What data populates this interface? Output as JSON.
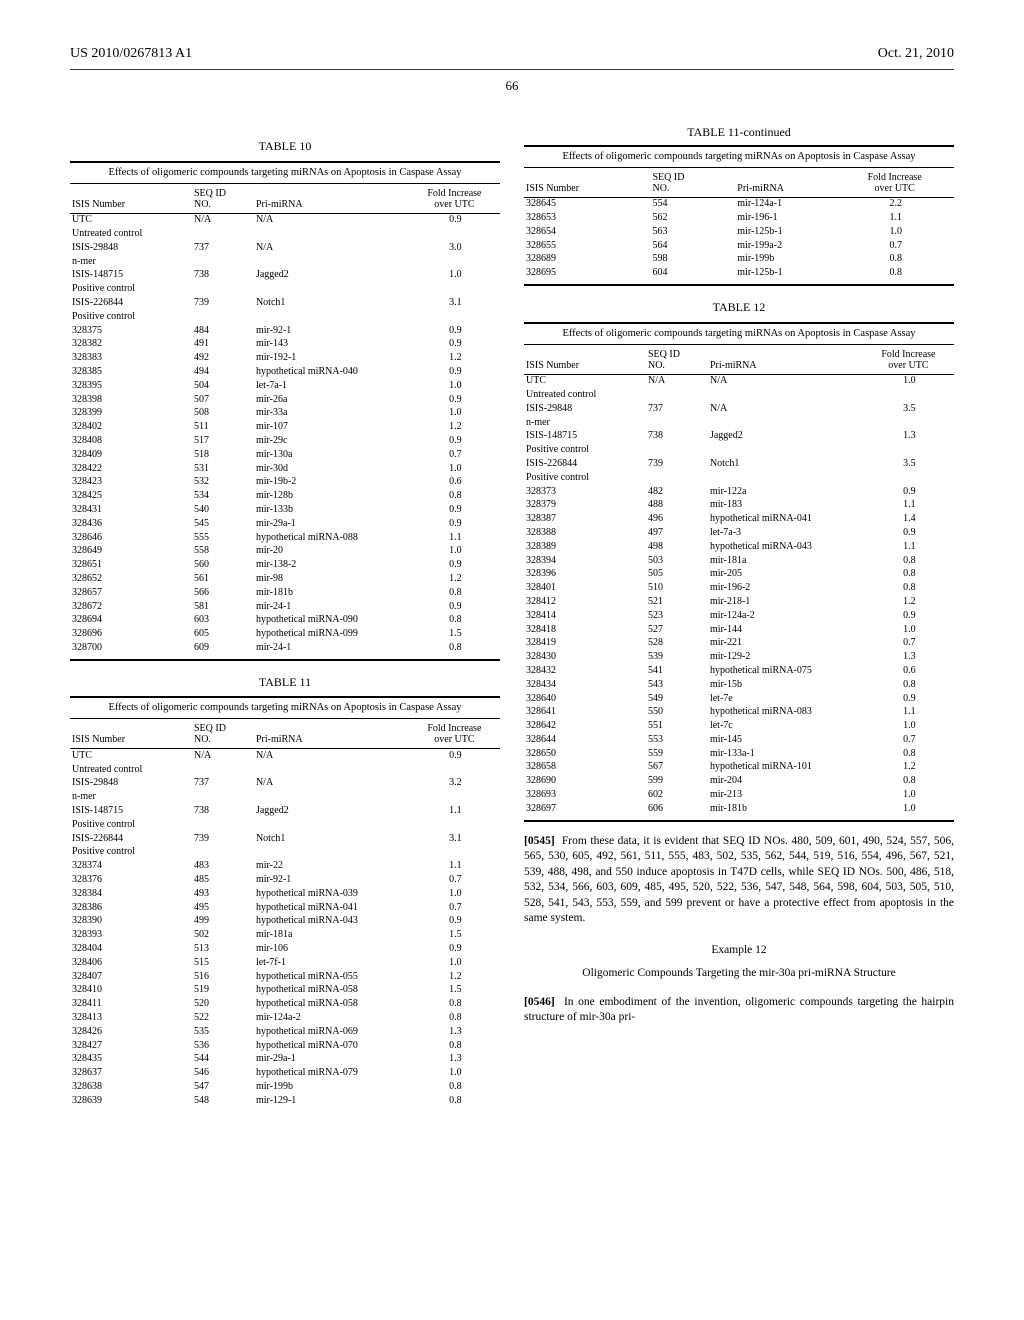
{
  "header": {
    "pub": "US 2010/0267813 A1",
    "date": "Oct. 21, 2010"
  },
  "page_num": "66",
  "tables": {
    "t10": {
      "caption": "TABLE 10",
      "subtitle": "Effects of oligomeric compounds targeting miRNAs on Apoptosis in Caspase Assay",
      "headers": [
        "ISIS Number",
        "SEQ ID NO.",
        "Pri-miRNA",
        "Fold Increase over UTC"
      ],
      "rows": [
        [
          "UTC",
          "N/A",
          "N/A",
          "0.9"
        ],
        [
          "Untreated control",
          "",
          "",
          ""
        ],
        [
          "ISIS-29848",
          "737",
          "N/A",
          "3.0"
        ],
        [
          "n-mer",
          "",
          "",
          ""
        ],
        [
          "ISIS-148715",
          "738",
          "Jagged2",
          "1.0"
        ],
        [
          "Positive control",
          "",
          "",
          ""
        ],
        [
          "ISIS-226844",
          "739",
          "Notch1",
          "3.1"
        ],
        [
          "Positive control",
          "",
          "",
          ""
        ],
        [
          "328375",
          "484",
          "mir-92-1",
          "0.9"
        ],
        [
          "328382",
          "491",
          "mir-143",
          "0.9"
        ],
        [
          "328383",
          "492",
          "mir-192-1",
          "1.2"
        ],
        [
          "328385",
          "494",
          "hypothetical miRNA-040",
          "0.9"
        ],
        [
          "328395",
          "504",
          "let-7a-1",
          "1.0"
        ],
        [
          "328398",
          "507",
          "mir-26a",
          "0.9"
        ],
        [
          "328399",
          "508",
          "mir-33a",
          "1.0"
        ],
        [
          "328402",
          "511",
          "mir-107",
          "1.2"
        ],
        [
          "328408",
          "517",
          "mir-29c",
          "0.9"
        ],
        [
          "328409",
          "518",
          "mir-130a",
          "0.7"
        ],
        [
          "328422",
          "531",
          "mir-30d",
          "1.0"
        ],
        [
          "328423",
          "532",
          "mir-19b-2",
          "0.6"
        ],
        [
          "328425",
          "534",
          "mir-128b",
          "0.8"
        ],
        [
          "328431",
          "540",
          "mir-133b",
          "0.9"
        ],
        [
          "328436",
          "545",
          "mir-29a-1",
          "0.9"
        ],
        [
          "328646",
          "555",
          "hypothetical miRNA-088",
          "1.1"
        ],
        [
          "328649",
          "558",
          "mir-20",
          "1.0"
        ],
        [
          "328651",
          "560",
          "mir-138-2",
          "0.9"
        ],
        [
          "328652",
          "561",
          "mir-98",
          "1.2"
        ],
        [
          "328657",
          "566",
          "mir-181b",
          "0.8"
        ],
        [
          "328672",
          "581",
          "mir-24-1",
          "0.9"
        ],
        [
          "328694",
          "603",
          "hypothetical miRNA-090",
          "0.8"
        ],
        [
          "328696",
          "605",
          "hypothetical miRNA-099",
          "1.5"
        ],
        [
          "328700",
          "609",
          "mir-24-1",
          "0.8"
        ]
      ]
    },
    "t11a": {
      "caption": "TABLE 11",
      "subtitle": "Effects of oligomeric compounds targeting miRNAs on Apoptosis in Caspase Assay",
      "headers": [
        "ISIS Number",
        "SEQ ID NO.",
        "Pri-miRNA",
        "Fold Increase over UTC"
      ],
      "rows": [
        [
          "UTC",
          "N/A",
          "N/A",
          "0.9"
        ],
        [
          "Untreated control",
          "",
          "",
          ""
        ],
        [
          "ISIS-29848",
          "737",
          "N/A",
          "3.2"
        ],
        [
          "n-mer",
          "",
          "",
          ""
        ],
        [
          "ISIS-148715",
          "738",
          "Jagged2",
          "1.1"
        ],
        [
          "Positive control",
          "",
          "",
          ""
        ],
        [
          "ISIS-226844",
          "739",
          "Notch1",
          "3.1"
        ],
        [
          "Positive control",
          "",
          "",
          ""
        ],
        [
          "328374",
          "483",
          "mir-22",
          "1.1"
        ],
        [
          "328376",
          "485",
          "mir-92-1",
          "0.7"
        ],
        [
          "328384",
          "493",
          "hypothetical miRNA-039",
          "1.0"
        ],
        [
          "328386",
          "495",
          "hypothetical miRNA-041",
          "0.7"
        ],
        [
          "328390",
          "499",
          "hypothetical miRNA-043",
          "0.9"
        ],
        [
          "328393",
          "502",
          "mir-181a",
          "1.5"
        ],
        [
          "328404",
          "513",
          "mir-106",
          "0.9"
        ],
        [
          "328406",
          "515",
          "let-7f-1",
          "1.0"
        ],
        [
          "328407",
          "516",
          "hypothetical miRNA-055",
          "1.2"
        ],
        [
          "328410",
          "519",
          "hypothetical miRNA-058",
          "1.5"
        ],
        [
          "328411",
          "520",
          "hypothetical miRNA-058",
          "0.8"
        ],
        [
          "328413",
          "522",
          "mir-124a-2",
          "0.8"
        ],
        [
          "328426",
          "535",
          "hypothetical miRNA-069",
          "1.3"
        ],
        [
          "328427",
          "536",
          "hypothetical miRNA-070",
          "0.8"
        ],
        [
          "328435",
          "544",
          "mir-29a-1",
          "1.3"
        ],
        [
          "328637",
          "546",
          "hypothetical miRNA-079",
          "1.0"
        ],
        [
          "328638",
          "547",
          "mir-199b",
          "0.8"
        ],
        [
          "328639",
          "548",
          "mir-129-1",
          "0.8"
        ]
      ]
    },
    "t11b": {
      "caption": "TABLE 11-continued",
      "subtitle": "Effects of oligomeric compounds targeting miRNAs on Apoptosis in Caspase Assay",
      "headers": [
        "ISIS Number",
        "SEQ ID NO.",
        "Pri-miRNA",
        "Fold Increase over UTC"
      ],
      "rows": [
        [
          "328645",
          "554",
          "mir-124a-1",
          "2.2"
        ],
        [
          "328653",
          "562",
          "mir-196-1",
          "1.1"
        ],
        [
          "328654",
          "563",
          "mir-125b-1",
          "1.0"
        ],
        [
          "328655",
          "564",
          "mir-199a-2",
          "0.7"
        ],
        [
          "328689",
          "598",
          "mir-199b",
          "0.8"
        ],
        [
          "328695",
          "604",
          "mir-125b-1",
          "0.8"
        ]
      ]
    },
    "t12": {
      "caption": "TABLE 12",
      "subtitle": "Effects of oligomeric compounds targeting miRNAs on Apoptosis in Caspase Assay",
      "headers": [
        "ISIS Number",
        "SEQ ID NO.",
        "Pri-miRNA",
        "Fold Increase over UTC"
      ],
      "rows": [
        [
          "UTC",
          "N/A",
          "N/A",
          "1.0"
        ],
        [
          "Untreated control",
          "",
          "",
          ""
        ],
        [
          "ISIS-29848",
          "737",
          "N/A",
          "3.5"
        ],
        [
          "n-mer",
          "",
          "",
          ""
        ],
        [
          "ISIS-148715",
          "738",
          "Jagged2",
          "1.3"
        ],
        [
          "Positive control",
          "",
          "",
          ""
        ],
        [
          "ISIS-226844",
          "739",
          "Notch1",
          "3.5"
        ],
        [
          "Positive control",
          "",
          "",
          ""
        ],
        [
          "328373",
          "482",
          "mir-122a",
          "0.9"
        ],
        [
          "328379",
          "488",
          "mir-183",
          "1.1"
        ],
        [
          "328387",
          "496",
          "hypothetical miRNA-041",
          "1.4"
        ],
        [
          "328388",
          "497",
          "let-7a-3",
          "0.9"
        ],
        [
          "328389",
          "498",
          "hypothetical miRNA-043",
          "1.1"
        ],
        [
          "328394",
          "503",
          "mir-181a",
          "0.8"
        ],
        [
          "328396",
          "505",
          "mir-205",
          "0.8"
        ],
        [
          "328401",
          "510",
          "mir-196-2",
          "0.8"
        ],
        [
          "328412",
          "521",
          "mir-218-1",
          "1.2"
        ],
        [
          "328414",
          "523",
          "mir-124a-2",
          "0.9"
        ],
        [
          "328418",
          "527",
          "mir-144",
          "1.0"
        ],
        [
          "328419",
          "528",
          "mir-221",
          "0.7"
        ],
        [
          "328430",
          "539",
          "mir-129-2",
          "1.3"
        ],
        [
          "328432",
          "541",
          "hypothetical miRNA-075",
          "0.6"
        ],
        [
          "328434",
          "543",
          "mir-15b",
          "0.8"
        ],
        [
          "328640",
          "549",
          "let-7e",
          "0.9"
        ],
        [
          "328641",
          "550",
          "hypothetical miRNA-083",
          "1.1"
        ],
        [
          "328642",
          "551",
          "let-7c",
          "1.0"
        ],
        [
          "328644",
          "553",
          "mir-145",
          "0.7"
        ],
        [
          "328650",
          "559",
          "mir-133a-1",
          "0.8"
        ],
        [
          "328658",
          "567",
          "hypothetical miRNA-101",
          "1.2"
        ],
        [
          "328690",
          "599",
          "mir-204",
          "0.8"
        ],
        [
          "328693",
          "602",
          "mir-213",
          "1.0"
        ],
        [
          "328697",
          "606",
          "mir-181b",
          "1.0"
        ]
      ]
    }
  },
  "para545": {
    "num": "[0545]",
    "text": "From these data, it is evident that SEQ ID NOs. 480, 509, 601, 490, 524, 557, 506, 565, 530, 605, 492, 561, 511, 555, 483, 502, 535, 562, 544, 519, 516, 554, 496, 567, 521, 539, 488, 498, and 550 induce apoptosis in T47D cells, while SEQ ID NOs. 500, 486, 518, 532, 534, 566, 603, 609, 485, 495, 520, 522, 536, 547, 548, 564, 598, 604, 503, 505, 510, 528, 541, 543, 553, 559, and 599 prevent or have a protective effect from apoptosis in the same system."
  },
  "example12": {
    "title": "Example 12",
    "subtitle": "Oligomeric Compounds Targeting the mir-30a pri-miRNA Structure"
  },
  "para546": {
    "num": "[0546]",
    "text": "In one embodiment of the invention, oligomeric compounds targeting the hairpin structure of mir-30a pri-"
  }
}
